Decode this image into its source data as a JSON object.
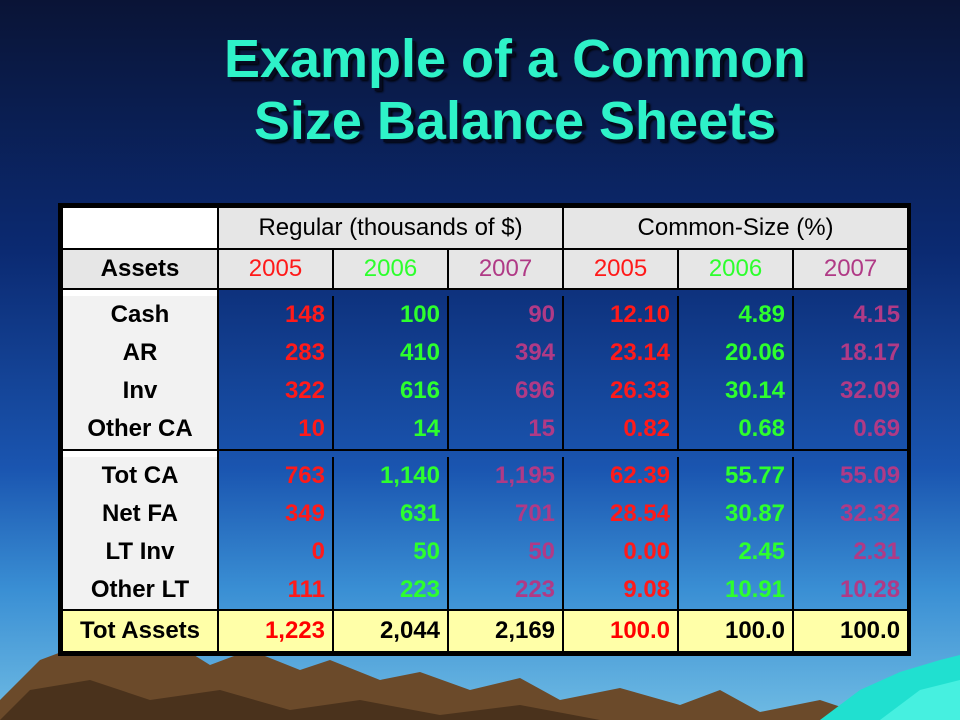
{
  "slide": {
    "title_line1": "Example of a Common",
    "title_line2": "Size Balance Sheets"
  },
  "table": {
    "group_headers": [
      "Regular (thousands of $)",
      "Common-Size (%)"
    ],
    "year_header_label": "Assets",
    "years": [
      "2005",
      "2006",
      "2007",
      "2005",
      "2006",
      "2007"
    ],
    "year_colors": [
      "#ff1a1a",
      "#2dff2d",
      "#b03a86",
      "#ff1a1a",
      "#2dff2d",
      "#b03a86"
    ],
    "current_assets": [
      {
        "label": "Cash",
        "values": [
          "148",
          "100",
          "90",
          "12.10",
          "4.89",
          "4.15"
        ]
      },
      {
        "label": "AR",
        "values": [
          "283",
          "410",
          "394",
          "23.14",
          "20.06",
          "18.17"
        ]
      },
      {
        "label": "Inv",
        "values": [
          "322",
          "616",
          "696",
          "26.33",
          "30.14",
          "32.09"
        ]
      },
      {
        "label": "Other CA",
        "values": [
          "10",
          "14",
          "15",
          "0.82",
          "0.68",
          "0.69"
        ]
      }
    ],
    "long_term": [
      {
        "label": "Tot CA",
        "values": [
          "763",
          "1,140",
          "1,195",
          "62.39",
          "55.77",
          "55.09"
        ]
      },
      {
        "label": "Net FA",
        "values": [
          "349",
          "631",
          "701",
          "28.54",
          "30.87",
          "32.32"
        ]
      },
      {
        "label": "LT Inv",
        "values": [
          "0",
          "50",
          "50",
          "0.00",
          "2.45",
          "2.31"
        ]
      },
      {
        "label": "Other LT",
        "values": [
          "111",
          "223",
          "223",
          "9.08",
          "10.91",
          "10.28"
        ]
      }
    ],
    "total": {
      "label": "Tot Assets",
      "values": [
        "1,223",
        "2,044",
        "2,169",
        "100.0",
        "100.0",
        "100.0"
      ]
    }
  },
  "colors": {
    "title": "#2ef2c8",
    "total_row_bg": "#ffffa8",
    "header_bg": "#e6e6e6"
  }
}
